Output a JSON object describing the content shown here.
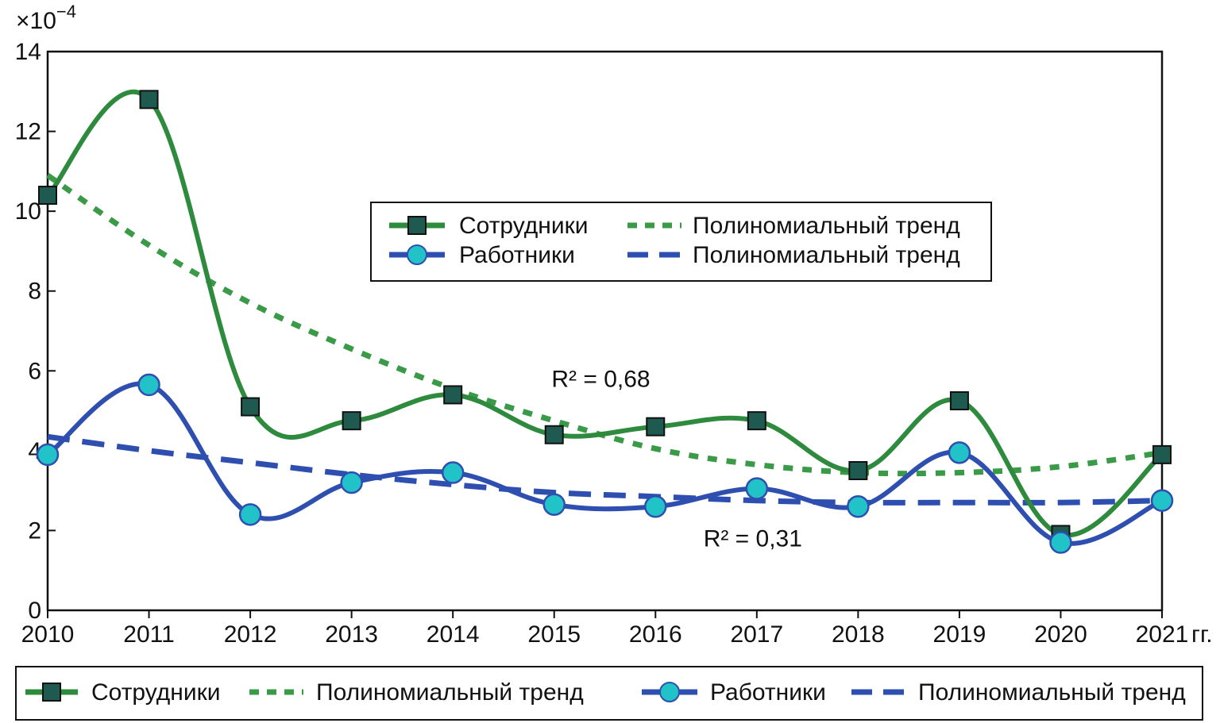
{
  "chart_data": {
    "type": "line",
    "x": [
      "2010",
      "2011",
      "2012",
      "2013",
      "2014",
      "2015",
      "2016",
      "2017",
      "2018",
      "2019",
      "2020",
      "2021"
    ],
    "x_unit": "гг.",
    "y_multiplier": "×10",
    "y_multiplier_exp": "−4",
    "ylim": [
      0,
      14
    ],
    "yticks": [
      "0",
      "2",
      "4",
      "6",
      "8",
      "10",
      "12",
      "14"
    ],
    "grid": false,
    "series": [
      {
        "name": "Сотрудники",
        "values": [
          10.4,
          12.8,
          5.1,
          4.75,
          5.4,
          4.4,
          4.6,
          4.75,
          3.5,
          5.25,
          1.9,
          3.9
        ],
        "color": "#2e8b3e",
        "marker": "square",
        "marker_fill": "#1f5a50"
      },
      {
        "name": "Работники",
        "values": [
          3.9,
          5.65,
          2.4,
          3.2,
          3.45,
          2.65,
          2.6,
          3.05,
          2.6,
          3.95,
          1.7,
          2.75
        ],
        "color": "#2f4fb0",
        "marker": "circle",
        "marker_fill": "#22c3c8"
      }
    ],
    "trends": [
      {
        "name": "Полиномиальный тренд",
        "of": "Сотрудники",
        "values": [
          10.9,
          9.15,
          7.7,
          6.55,
          5.55,
          4.75,
          4.05,
          3.65,
          3.45,
          3.45,
          3.6,
          3.95
        ],
        "color": "#3a9a48",
        "style": "dotted"
      },
      {
        "name": "Полиномиальный тренд",
        "of": "Работники",
        "values": [
          4.35,
          4.0,
          3.7,
          3.4,
          3.15,
          2.95,
          2.85,
          2.75,
          2.7,
          2.7,
          2.7,
          2.75
        ],
        "color": "#2f4fb0",
        "style": "dashed"
      }
    ],
    "annotations": [
      {
        "text": "R² = 0,68",
        "x": 2015.5,
        "y": 5.8
      },
      {
        "text": "R² = 0,31",
        "x": 2017.0,
        "y": 1.8
      }
    ],
    "legend_inner": {
      "placement": "center-top",
      "entries": [
        "Сотрудники",
        "Полиномиальный тренд",
        "Работники",
        "Полиномиальный тренд"
      ]
    },
    "legend_bottom": {
      "placement": "bottom",
      "entries": [
        "Сотрудники",
        "Полиномиальный тренд",
        "Работники",
        "Полиномиальный тренд"
      ]
    }
  }
}
